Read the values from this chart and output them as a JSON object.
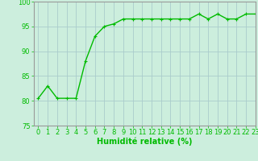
{
  "x": [
    0,
    1,
    2,
    3,
    4,
    5,
    6,
    7,
    8,
    9,
    10,
    11,
    12,
    13,
    14,
    15,
    16,
    17,
    18,
    19,
    20,
    21,
    22,
    23
  ],
  "y": [
    80.5,
    83,
    80.5,
    80.5,
    80.5,
    88,
    93,
    95,
    95.5,
    96.5,
    96.5,
    96.5,
    96.5,
    96.5,
    96.5,
    96.5,
    96.5,
    97.5,
    96.5,
    97.5,
    96.5,
    96.5,
    97.5,
    97.5
  ],
  "line_color": "#00bb00",
  "marker_color": "#00bb00",
  "bg_color": "#cceedd",
  "grid_color": "#aacccc",
  "xlabel": "Humidité relative (%)",
  "ylim": [
    75,
    100
  ],
  "xlim": [
    -0.5,
    23
  ],
  "yticks": [
    75,
    80,
    85,
    90,
    95,
    100
  ],
  "xticks": [
    0,
    1,
    2,
    3,
    4,
    5,
    6,
    7,
    8,
    9,
    10,
    11,
    12,
    13,
    14,
    15,
    16,
    17,
    18,
    19,
    20,
    21,
    22,
    23
  ],
  "tick_fontsize": 6,
  "xlabel_fontsize": 7,
  "xlabel_color": "#00bb00",
  "tick_color": "#00bb00",
  "marker_size": 2.5,
  "line_width": 1.0
}
